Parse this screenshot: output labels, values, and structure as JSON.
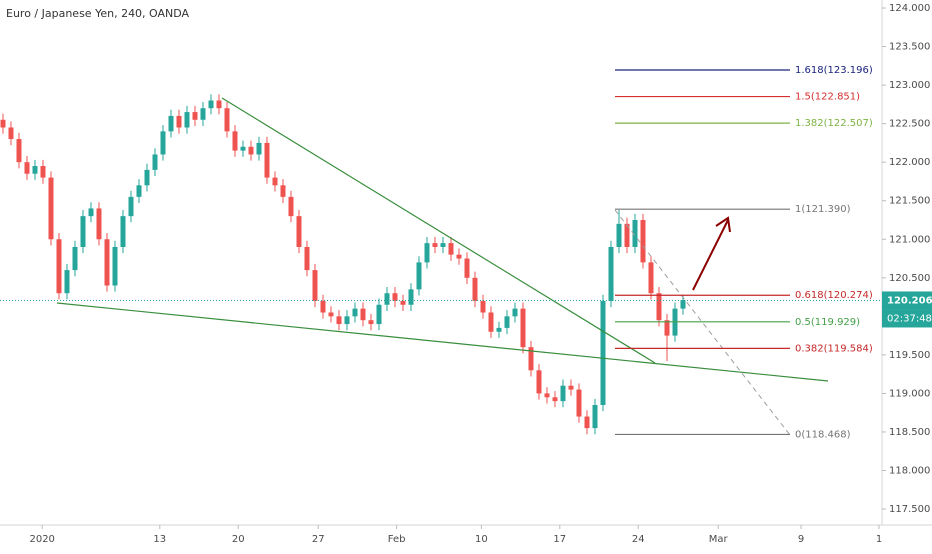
{
  "chart_data": {
    "type": "candlestick",
    "title": "Euro / Japanese Yen, 240, OANDA",
    "up_color": "#26a69a",
    "down_color": "#ef5350",
    "open": [
      122.55,
      122.45,
      122.3,
      122.0,
      121.85,
      121.95,
      121.8,
      121.0,
      120.3,
      120.6,
      120.9,
      121.3,
      121.4,
      121.0,
      120.4,
      120.9,
      121.3,
      121.55,
      121.7,
      121.9,
      122.1,
      122.4,
      122.6,
      122.45,
      122.65,
      122.55,
      122.7,
      122.8,
      122.7,
      122.4,
      122.15,
      122.2,
      122.1,
      122.25,
      121.8,
      121.7,
      121.55,
      121.3,
      120.9,
      120.6,
      120.2,
      120.05,
      120.0,
      119.9,
      120.0,
      120.1,
      119.95,
      119.9,
      120.15,
      120.3,
      120.2,
      120.15,
      120.35,
      120.7,
      120.95,
      120.9,
      120.95,
      120.8,
      120.75,
      120.5,
      120.2,
      120.05,
      119.8,
      119.85,
      120.0,
      120.1,
      119.6,
      119.3,
      119.0,
      118.95,
      118.9,
      119.1,
      119.05,
      118.7,
      118.55,
      118.85,
      120.2,
      120.9,
      121.2,
      120.9,
      121.25,
      120.7,
      120.3,
      119.95,
      119.75,
      120.1
    ],
    "high": [
      122.63,
      122.53,
      122.38,
      122.08,
      122.03,
      122.03,
      121.88,
      121.08,
      120.68,
      120.98,
      121.38,
      121.48,
      121.48,
      121.08,
      120.98,
      121.38,
      121.63,
      121.78,
      121.98,
      122.18,
      122.48,
      122.68,
      122.68,
      122.73,
      122.73,
      122.78,
      122.88,
      122.88,
      122.78,
      122.48,
      122.28,
      122.28,
      122.33,
      122.33,
      121.88,
      121.78,
      121.63,
      121.38,
      120.98,
      120.68,
      120.28,
      120.13,
      120.08,
      120.08,
      120.18,
      120.18,
      120.03,
      120.23,
      120.38,
      120.38,
      120.28,
      120.43,
      120.78,
      121.03,
      121.03,
      121.03,
      121.03,
      120.88,
      120.83,
      120.58,
      120.28,
      120.13,
      119.93,
      120.08,
      120.18,
      120.18,
      119.68,
      119.38,
      119.08,
      119.03,
      119.18,
      119.18,
      119.13,
      118.78,
      118.93,
      120.28,
      120.98,
      121.38,
      121.28,
      121.33,
      121.33,
      120.78,
      120.38,
      120.03,
      120.18,
      120.28
    ],
    "low": [
      122.37,
      122.22,
      121.92,
      121.77,
      121.77,
      121.72,
      120.92,
      120.22,
      120.22,
      120.52,
      120.82,
      121.22,
      120.92,
      120.32,
      120.32,
      120.82,
      121.22,
      121.47,
      121.62,
      121.82,
      122.02,
      122.32,
      122.37,
      122.37,
      122.47,
      122.47,
      122.62,
      122.62,
      122.32,
      122.07,
      122.07,
      122.02,
      122.02,
      121.72,
      121.62,
      121.47,
      121.22,
      120.82,
      120.52,
      120.12,
      119.97,
      119.92,
      119.82,
      119.82,
      119.92,
      119.87,
      119.82,
      119.82,
      120.07,
      120.12,
      120.07,
      120.07,
      120.27,
      120.62,
      120.82,
      120.82,
      120.72,
      120.67,
      120.42,
      120.12,
      119.97,
      119.72,
      119.72,
      119.77,
      119.92,
      119.52,
      119.22,
      118.92,
      118.87,
      118.82,
      118.82,
      118.97,
      118.62,
      118.47,
      118.47,
      118.77,
      120.12,
      120.82,
      120.82,
      120.82,
      120.62,
      120.22,
      119.87,
      119.42,
      119.67,
      120.02
    ],
    "close": [
      122.45,
      122.3,
      122.0,
      121.85,
      121.95,
      121.8,
      121.0,
      120.3,
      120.6,
      120.9,
      121.3,
      121.4,
      121.0,
      120.4,
      120.9,
      121.3,
      121.55,
      121.7,
      121.9,
      122.1,
      122.4,
      122.6,
      122.45,
      122.65,
      122.55,
      122.7,
      122.8,
      122.7,
      122.4,
      122.15,
      122.2,
      122.1,
      122.25,
      121.8,
      121.7,
      121.55,
      121.3,
      120.9,
      120.6,
      120.2,
      120.05,
      120.0,
      119.9,
      120.0,
      120.1,
      119.95,
      119.9,
      120.15,
      120.3,
      120.2,
      120.15,
      120.35,
      120.7,
      120.95,
      120.9,
      120.95,
      120.8,
      120.75,
      120.5,
      120.2,
      120.05,
      119.8,
      119.85,
      120.0,
      120.1,
      119.6,
      119.3,
      119.0,
      118.95,
      118.9,
      119.1,
      119.05,
      118.7,
      118.55,
      118.85,
      120.2,
      120.9,
      121.2,
      120.9,
      121.25,
      120.7,
      120.3,
      119.95,
      119.75,
      120.1,
      120.21
    ],
    "xlim": [
      -0.375,
      109.875
    ],
    "xticks": [
      {
        "value": 4.9,
        "label": "2020"
      },
      {
        "value": 19.6,
        "label": "13"
      },
      {
        "value": 29.4,
        "label": "20"
      },
      {
        "value": 39.4,
        "label": "27"
      },
      {
        "value": 49.2,
        "label": "Feb"
      },
      {
        "value": 59.8,
        "label": "10"
      },
      {
        "value": 69.6,
        "label": "17"
      },
      {
        "value": 79.4,
        "label": "24"
      },
      {
        "value": 89.4,
        "label": "Mar"
      },
      {
        "value": 99.75,
        "label": "9"
      },
      {
        "value": 109.5,
        "label": "1"
      }
    ],
    "ylim": [
      117.293,
      124.104
    ],
    "yticks": [
      {
        "value": 117.5,
        "label": "117.500"
      },
      {
        "value": 118,
        "label": "118.000"
      },
      {
        "value": 118.5,
        "label": "118.500"
      },
      {
        "value": 119,
        "label": "119.000"
      },
      {
        "value": 119.5,
        "label": "119.500"
      },
      {
        "value": 120,
        "label": "120.000"
      },
      {
        "value": 120.5,
        "label": "120.500"
      },
      {
        "value": 121,
        "label": "121.000"
      },
      {
        "value": 121.5,
        "label": "121.500"
      },
      {
        "value": 122,
        "label": "122.000"
      },
      {
        "value": 122.5,
        "label": "122.500"
      },
      {
        "value": 123,
        "label": "123.000"
      },
      {
        "value": 123.5,
        "label": "123.500"
      },
      {
        "value": 124,
        "label": "124.000"
      }
    ],
    "last_price": 120.206,
    "last_price_color": "#26a69a",
    "countdown": "02:37:48",
    "fib_levels": [
      {
        "label": "1.618(123.196)",
        "price": 123.196,
        "color": "#1a237e"
      },
      {
        "label": "1.5(122.851)",
        "price": 122.851,
        "color": "#d32f2f"
      },
      {
        "label": "1.382(122.507)",
        "price": 122.507,
        "color": "#7cb342"
      },
      {
        "label": "1(121.390)",
        "price": 121.39,
        "color": "#757575"
      },
      {
        "label": "0.618(120.274)",
        "price": 120.274,
        "color": "#c62828"
      },
      {
        "label": "0.5(119.929)",
        "price": 119.929,
        "color": "#43a047"
      },
      {
        "label": "0.382(119.584)",
        "price": 119.584,
        "color": "#c62828"
      },
      {
        "label": "0(118.468)",
        "price": 118.468,
        "color": "#757575"
      }
    ]
  }
}
